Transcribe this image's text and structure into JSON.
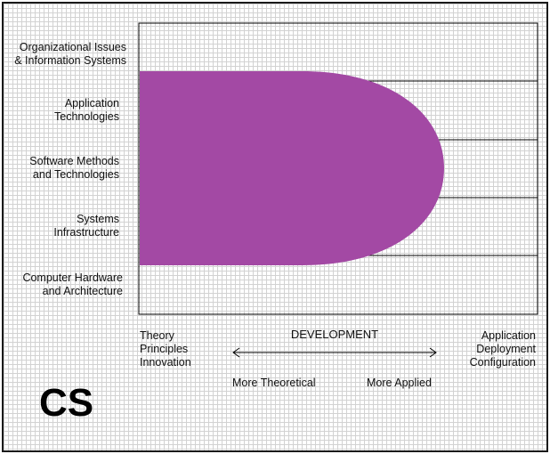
{
  "rows": [
    {
      "line1": "Organizational Issues",
      "line2": "& Information Systems"
    },
    {
      "line1": "Application",
      "line2": "Technologies"
    },
    {
      "line1": "Software Methods",
      "line2": "and Technologies"
    },
    {
      "line1": "Systems",
      "line2": "Infrastructure"
    },
    {
      "line1": "Computer Hardware",
      "line2": "and Architecture"
    }
  ],
  "left_axis": {
    "line1": "Theory",
    "line2": "Principles",
    "line3": "Innovation"
  },
  "right_axis": {
    "line1": "Application",
    "line2": "Deployment",
    "line3": "Configuration"
  },
  "axis_title": "DEVELOPMENT",
  "arrow_left_label": "More Theoretical",
  "arrow_right_label": "More Applied",
  "discipline": "CS",
  "colors": {
    "region": "#a349a4",
    "lines": "#000000",
    "grid": "#d2d2d2"
  }
}
